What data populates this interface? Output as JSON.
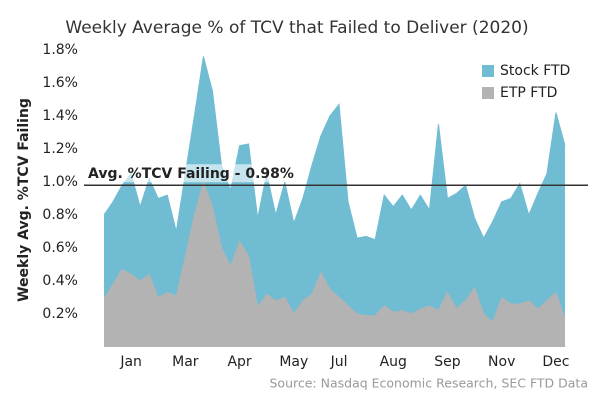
{
  "chart_data": {
    "type": "area",
    "title": "Weekly Average % of TCV that Failed to Deliver (2020)",
    "y_label": "Weekly Avg. %TCV Failing",
    "source": "Source: Nasdaq Economic Research, SEC FTD Data",
    "categories": [
      null,
      null,
      null,
      "Jan",
      null,
      null,
      null,
      null,
      null,
      "Mar",
      null,
      null,
      null,
      null,
      null,
      "Apr",
      null,
      null,
      null,
      null,
      null,
      "May",
      null,
      null,
      null,
      null,
      "Jul",
      null,
      null,
      null,
      null,
      null,
      "Aug",
      null,
      null,
      null,
      null,
      null,
      "Sep",
      null,
      null,
      null,
      null,
      null,
      "Nov",
      null,
      null,
      null,
      null,
      null,
      "Dec",
      null
    ],
    "series": [
      {
        "name": "Stock FTD",
        "color": "#70bcd3",
        "values": [
          0.8,
          0.88,
          0.98,
          1.05,
          0.85,
          1.02,
          0.9,
          0.92,
          0.7,
          1.05,
          1.4,
          1.76,
          1.55,
          1.1,
          0.95,
          1.22,
          1.23,
          0.78,
          1.05,
          0.8,
          1.0,
          0.75,
          0.9,
          1.1,
          1.28,
          1.4,
          1.47,
          0.88,
          0.66,
          0.67,
          0.65,
          0.92,
          0.85,
          0.92,
          0.83,
          0.92,
          0.83,
          1.35,
          0.9,
          0.93,
          0.98,
          0.78,
          0.66,
          0.76,
          0.88,
          0.9,
          0.99,
          0.8,
          0.93,
          1.05,
          1.42,
          1.22
        ]
      },
      {
        "name": "ETP FTD",
        "color": "#b3b3b3",
        "values": [
          0.29,
          0.38,
          0.47,
          0.44,
          0.4,
          0.44,
          0.3,
          0.33,
          0.31,
          0.55,
          0.8,
          1.0,
          0.85,
          0.6,
          0.49,
          0.64,
          0.55,
          0.24,
          0.32,
          0.28,
          0.3,
          0.2,
          0.28,
          0.32,
          0.45,
          0.35,
          0.3,
          0.25,
          0.2,
          0.19,
          0.19,
          0.25,
          0.21,
          0.22,
          0.2,
          0.23,
          0.25,
          0.22,
          0.33,
          0.23,
          0.28,
          0.36,
          0.2,
          0.15,
          0.3,
          0.26,
          0.26,
          0.28,
          0.23,
          0.28,
          0.33,
          0.17
        ]
      }
    ],
    "ref_line": {
      "value": 0.98,
      "label": "Avg. %TCV Failing - 0.98%"
    },
    "ylim": [
      0,
      1.86
    ],
    "yticks": [
      {
        "value": 0.2,
        "label": "0.2%"
      },
      {
        "value": 0.4,
        "label": "0.4%"
      },
      {
        "value": 0.6,
        "label": "0.6%"
      },
      {
        "value": 0.8,
        "label": "0.8%"
      },
      {
        "value": 1.0,
        "label": "1.0%"
      },
      {
        "value": 1.2,
        "label": "1.2%"
      },
      {
        "value": 1.4,
        "label": "1.4%"
      },
      {
        "value": 1.6,
        "label": "1.6%"
      },
      {
        "value": 1.8,
        "label": "1.8%"
      }
    ],
    "legend": "top-right",
    "grid": false
  }
}
